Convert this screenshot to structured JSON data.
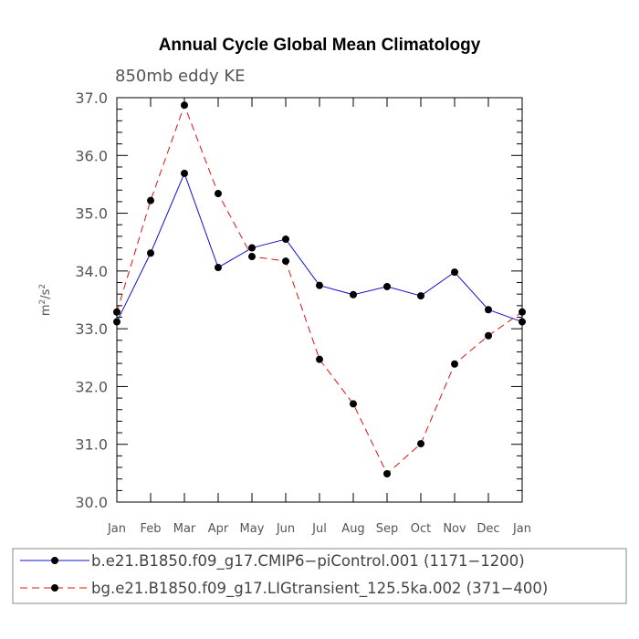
{
  "chart_data": {
    "type": "line",
    "title": "Annual Cycle Global Mean Climatology",
    "subtitle": "850mb eddy KE",
    "ylabel_base": "m",
    "ylabel_sup1": "2",
    "ylabel_mid": "/s",
    "ylabel_sup2": "2",
    "xlabel": "",
    "ylim": [
      30.0,
      37.0
    ],
    "yticks": [
      "30.0",
      "31.0",
      "32.0",
      "33.0",
      "34.0",
      "35.0",
      "36.0",
      "37.0"
    ],
    "categories": [
      "Jan",
      "Feb",
      "Mar",
      "Apr",
      "May",
      "Jun",
      "Jul",
      "Aug",
      "Sep",
      "Oct",
      "Nov",
      "Dec",
      "Jan"
    ],
    "grid": false,
    "legend_position": "bottom",
    "series": [
      {
        "name": "b.e21.B1850.f09_g17.CMIP6−piControl.001 (1171−1200)",
        "color": "#1010d0",
        "dash": "solid",
        "values": [
          33.12,
          34.31,
          35.69,
          34.06,
          34.4,
          34.55,
          33.75,
          33.59,
          33.73,
          33.57,
          33.98,
          33.33,
          33.12
        ]
      },
      {
        "name": "bg.e21.B1850.f09_g17.LIGtransient_125.5ka.002 (371−400)",
        "color": "#e01010",
        "dash": "dashed",
        "values": [
          33.29,
          35.22,
          36.87,
          35.34,
          34.25,
          34.17,
          32.47,
          31.7,
          30.49,
          31.01,
          32.39,
          32.88,
          33.29
        ]
      }
    ]
  }
}
